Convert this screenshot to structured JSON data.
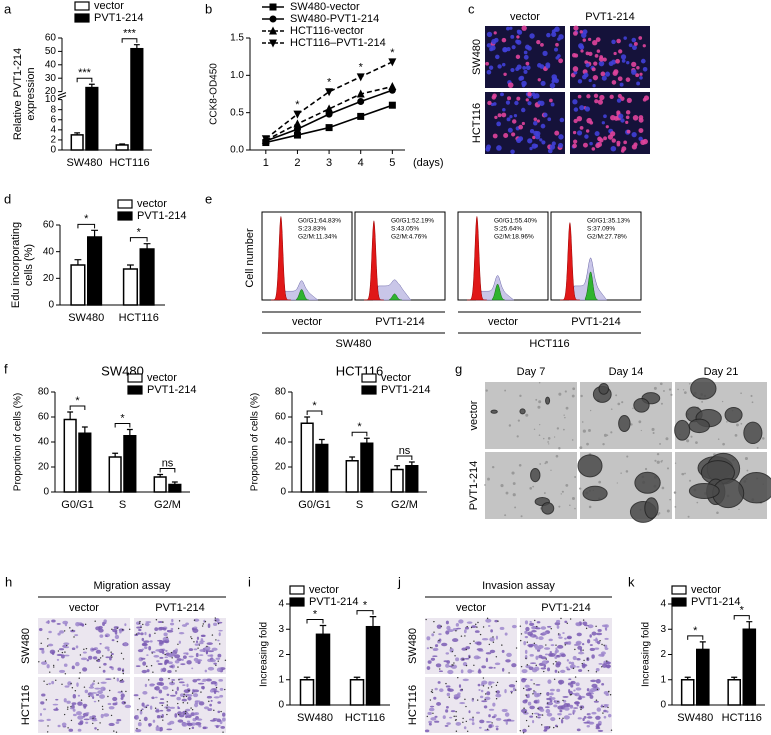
{
  "chart_data": [
    {
      "type": "bar",
      "panel": "a",
      "ylabel": [
        "Relative PVT1-214",
        "expression"
      ],
      "categories": [
        "SW480",
        "HCT116"
      ],
      "series": [
        {
          "name": "vector",
          "color": "#ffffff",
          "values": [
            3,
            1
          ],
          "errors": [
            0.4,
            0.2
          ]
        },
        {
          "name": "PVT1-214",
          "color": "#000000",
          "values": [
            23,
            52
          ],
          "errors": [
            2.5,
            3
          ]
        }
      ],
      "ylim": [
        0,
        60
      ],
      "ybreak": [
        10,
        20
      ],
      "yticks": [
        0,
        2,
        4,
        6,
        8,
        10,
        20,
        30,
        40,
        50,
        60
      ],
      "annotations": [
        "***",
        "***"
      ]
    },
    {
      "type": "line",
      "panel": "b",
      "ylabel": "CCK8-OD450",
      "xlabel": "(days)",
      "x": [
        1,
        2,
        3,
        4,
        5
      ],
      "xlim": [
        0.5,
        5.4
      ],
      "xticks": [
        1,
        2,
        3,
        4,
        5
      ],
      "ylim": [
        0,
        1.5
      ],
      "yticks": [
        {
          "value": 0,
          "label": "0.0"
        },
        0.5,
        {
          "value": 1,
          "label": "1.0"
        },
        1.5
      ],
      "series": [
        {
          "name": "SW480-vector",
          "color": "#000000",
          "marker": "square",
          "dashed": false,
          "values": [
            0.1,
            0.2,
            0.3,
            0.45,
            0.6
          ]
        },
        {
          "name": "SW480-PVT1-214",
          "color": "#000000",
          "marker": "circle",
          "dashed": false,
          "values": [
            0.12,
            0.28,
            0.48,
            0.65,
            0.8
          ]
        },
        {
          "name": "HCT116-vector",
          "color": "#000000",
          "marker": "triangle",
          "dashed": true,
          "values": [
            0.13,
            0.35,
            0.55,
            0.75,
            0.85
          ]
        },
        {
          "name": "HCT116–PVT1-214",
          "color": "#000000",
          "marker": "triangle-down",
          "dashed": true,
          "values": [
            0.15,
            0.48,
            0.78,
            0.98,
            1.18
          ]
        }
      ],
      "annotations": [
        null,
        "*",
        "*",
        "*",
        "*"
      ]
    },
    {
      "type": "bar",
      "panel": "d",
      "ylabel": [
        "Edu incorporating",
        "cells (%)"
      ],
      "categories": [
        "SW480",
        "HCT116"
      ],
      "series": [
        {
          "name": "vector",
          "color": "#ffffff",
          "values": [
            30,
            27
          ],
          "errors": [
            4,
            3
          ]
        },
        {
          "name": "PVT1-214",
          "color": "#000000",
          "values": [
            51,
            42
          ],
          "errors": [
            5,
            4
          ]
        }
      ],
      "ylim": [
        0,
        60
      ],
      "yticks": [
        0,
        20,
        40,
        60
      ],
      "annotations": [
        "*",
        "*"
      ]
    },
    {
      "type": "bar",
      "panel": "f",
      "title": "SW480",
      "ylabel": "Proportion of cells (%)",
      "categories": [
        "G0/G1",
        "S",
        "G2/M"
      ],
      "series": [
        {
          "name": "vector",
          "color": "#ffffff",
          "values": [
            58,
            28,
            12
          ],
          "errors": [
            6,
            3,
            2
          ]
        },
        {
          "name": "PVT1-214",
          "color": "#000000",
          "values": [
            47,
            45,
            6
          ],
          "errors": [
            5,
            5,
            2
          ]
        }
      ],
      "ylim": [
        0,
        80
      ],
      "yticks": [
        0,
        20,
        40,
        60,
        80
      ],
      "annotations": [
        "*",
        "*",
        "ns"
      ]
    },
    {
      "type": "bar",
      "title": "HCT116",
      "ylabel": "Proportion of cells (%)",
      "categories": [
        "G0/G1",
        "S",
        "G2/M"
      ],
      "series": [
        {
          "name": "vector",
          "color": "#ffffff",
          "values": [
            55,
            25,
            18
          ],
          "errors": [
            5,
            3,
            3
          ]
        },
        {
          "name": "PVT1-214",
          "color": "#000000",
          "values": [
            38,
            39,
            21
          ],
          "errors": [
            4,
            4,
            3
          ]
        }
      ],
      "ylim": [
        0,
        80
      ],
      "yticks": [
        0,
        20,
        40,
        60,
        80
      ],
      "annotations": [
        "*",
        "*",
        "ns"
      ]
    },
    {
      "type": "bar",
      "panel": "i",
      "ylabel": "Increasing fold",
      "categories": [
        "SW480",
        "HCT116"
      ],
      "series": [
        {
          "name": "vector",
          "color": "#ffffff",
          "values": [
            1,
            1
          ],
          "errors": [
            0.1,
            0.1
          ]
        },
        {
          "name": "PVT1-214",
          "color": "#000000",
          "values": [
            2.8,
            3.1
          ],
          "errors": [
            0.35,
            0.4
          ]
        }
      ],
      "ylim": [
        0,
        4
      ],
      "yticks": [
        0,
        1,
        2,
        3,
        4
      ],
      "annotations": [
        "*",
        "*"
      ]
    },
    {
      "type": "bar",
      "panel": "k",
      "ylabel": "Increasing fold",
      "categories": [
        "SW480",
        "HCT116"
      ],
      "series": [
        {
          "name": "vector",
          "color": "#ffffff",
          "values": [
            1,
            1
          ],
          "errors": [
            0.1,
            0.1
          ]
        },
        {
          "name": "PVT1-214",
          "color": "#000000",
          "values": [
            2.2,
            3.0
          ],
          "errors": [
            0.3,
            0.3
          ]
        }
      ],
      "ylim": [
        0,
        4
      ],
      "yticks": [
        0,
        1,
        2,
        3,
        4
      ],
      "annotations": [
        "*",
        "*"
      ]
    }
  ],
  "panels": {
    "c": {
      "label": "c",
      "columns": [
        "vector",
        "PVT1-214"
      ],
      "rows": [
        "SW480",
        "HCT116"
      ]
    },
    "e": {
      "label": "e",
      "ylabel": "Cell number",
      "plots": [
        {
          "lines": [
            "G0/G1:64.83%",
            "S:23.83%",
            "G2/M:11.34%"
          ],
          "label": "vector"
        },
        {
          "lines": [
            "G0/G1:52.19%",
            "S:43.05%",
            "G2/M:4.76%"
          ],
          "label": "PVT1-214"
        },
        {
          "lines": [
            "G0/G1:55.40%",
            "S:25.64%",
            "G2/M:18.96%"
          ],
          "label": "vector"
        },
        {
          "lines": [
            "G0/G1:35.13%",
            "S:37.09%",
            "G2/M:27.78%"
          ],
          "label": "PVT1-214"
        }
      ],
      "groups": [
        "SW480",
        "HCT116"
      ]
    },
    "g": {
      "label": "g",
      "columns": [
        "Day 7",
        "Day 14",
        "Day 21"
      ],
      "rows": [
        "vector",
        "PVT1-214"
      ]
    },
    "h": {
      "label": "h",
      "title": "Migration assay",
      "columns": [
        "vector",
        "PVT1-214"
      ],
      "rows": [
        "SW480",
        "HCT116"
      ]
    },
    "j": {
      "label": "j",
      "title": "Invasion assay",
      "columns": [
        "vector",
        "PVT1-214"
      ],
      "rows": [
        "SW480",
        "HCT116"
      ]
    }
  }
}
